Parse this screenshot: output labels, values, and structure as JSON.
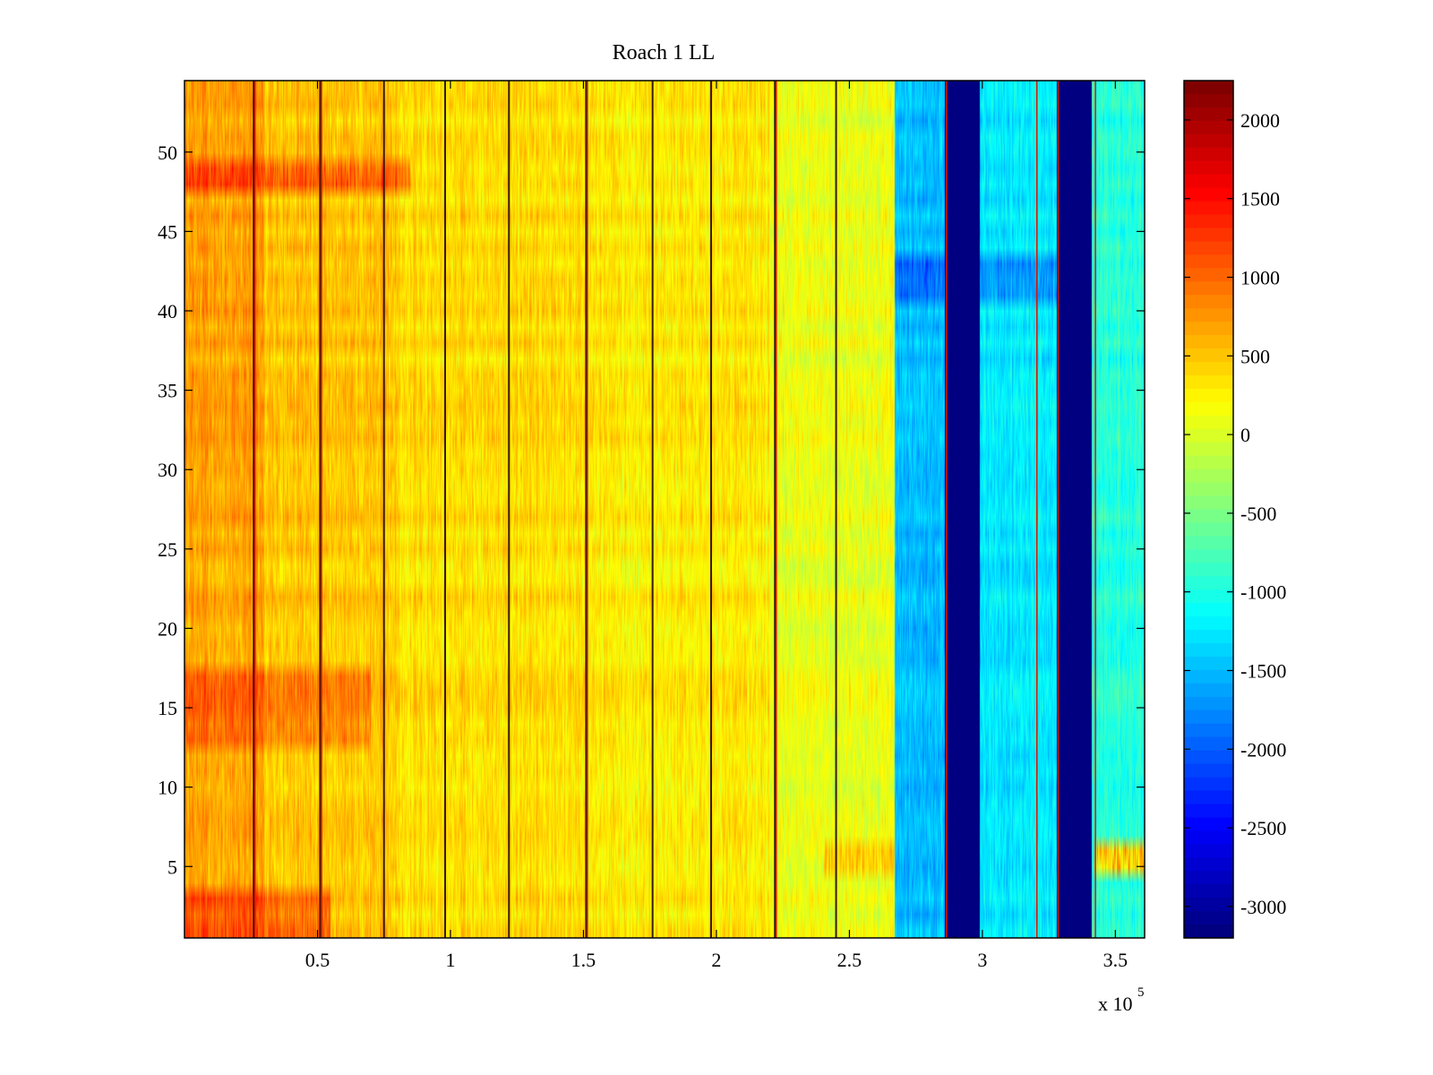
{
  "chart_data": {
    "type": "heatmap",
    "title": "Roach 1 LL",
    "xlabel": "",
    "ylabel": "",
    "x_multiplier_label": "x 10",
    "x_multiplier_exponent": "5",
    "xlim": [
      0,
      3.61
    ],
    "ylim": [
      0.5,
      54.5
    ],
    "x_ticks": [
      0.5,
      1,
      1.5,
      2,
      2.5,
      3,
      3.5
    ],
    "x_tick_labels": [
      "0.5",
      "1",
      "1.5",
      "2",
      "2.5",
      "3",
      "3.5"
    ],
    "y_ticks": [
      5,
      10,
      15,
      20,
      25,
      30,
      35,
      40,
      45,
      50
    ],
    "y_tick_labels": [
      "5",
      "10",
      "15",
      "20",
      "25",
      "30",
      "35",
      "40",
      "45",
      "50"
    ],
    "colorbar": {
      "colormap": "jet",
      "clim": [
        -3200,
        2250
      ],
      "ticks": [
        2000,
        1500,
        1000,
        500,
        0,
        -500,
        -1000,
        -1500,
        -2000,
        -2500,
        -3000
      ],
      "tick_labels": [
        "2000",
        "1500",
        "1000",
        "500",
        "0",
        "-500",
        "-1000",
        "-1500",
        "-2000",
        "-2500",
        "-3000"
      ]
    },
    "n_rows": 54,
    "dark_vertical_lines_x": [
      0.26,
      0.51,
      0.75,
      0.98,
      1.22,
      1.51,
      1.76,
      1.98,
      2.22,
      2.45
    ],
    "red_vertical_lines_x": [
      0.26,
      0.51,
      1.51,
      2.22,
      2.86,
      3.2,
      3.28,
      3.42
    ],
    "regions": [
      {
        "x_from": 0.0,
        "x_to": 0.3,
        "level": 700
      },
      {
        "x_from": 0.3,
        "x_to": 0.8,
        "level": 500
      },
      {
        "x_from": 0.8,
        "x_to": 1.5,
        "level": 380
      },
      {
        "x_from": 1.5,
        "x_to": 2.2,
        "level": 300
      },
      {
        "x_from": 2.2,
        "x_to": 2.67,
        "level": 100
      },
      {
        "x_from": 2.67,
        "x_to": 2.86,
        "level": -1500
      },
      {
        "x_from": 2.86,
        "x_to": 2.99,
        "level": -3200
      },
      {
        "x_from": 2.99,
        "x_to": 3.28,
        "level": -1250
      },
      {
        "x_from": 3.28,
        "x_to": 3.41,
        "level": -3200
      },
      {
        "x_from": 3.41,
        "x_to": 3.61,
        "level": -950
      }
    ],
    "row_emphasis": [
      {
        "y_from": 47.5,
        "y_to": 49.5,
        "x_to": 0.85,
        "delta": 600
      },
      {
        "y_from": 12.5,
        "y_to": 17.5,
        "x_to": 0.7,
        "delta": 350
      },
      {
        "y_from": 0.5,
        "y_to": 3.5,
        "x_to": 0.55,
        "delta": 500
      },
      {
        "y_from": 4.5,
        "y_to": 6.5,
        "x_from": 2.4,
        "x_to": 2.67,
        "delta": 450
      },
      {
        "y_from": 4.5,
        "y_to": 6.5,
        "x_from": 3.42,
        "x_to": 3.61,
        "delta": 1600
      },
      {
        "y_from": 40.5,
        "y_to": 43.5,
        "x_from": 2.67,
        "x_to": 3.28,
        "delta": -500
      }
    ]
  }
}
